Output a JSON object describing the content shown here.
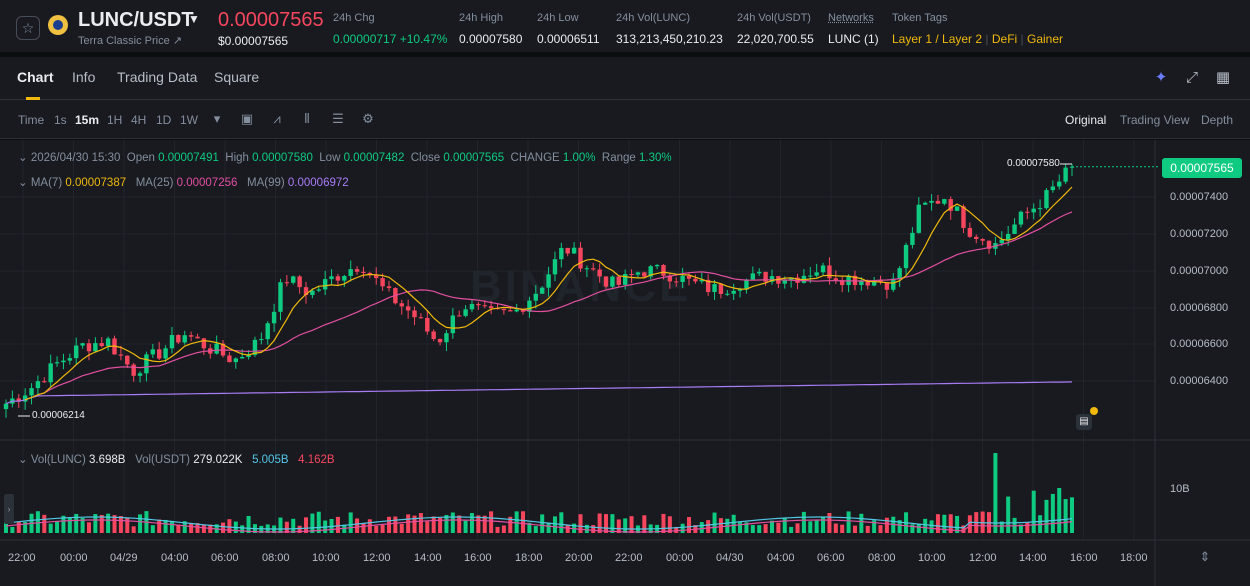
{
  "header": {
    "pair": "LUNC/USDT",
    "pair_subtitle": "Terra Classic Price ↗",
    "last_price": "0.00007565",
    "last_price_usd": "$0.00007565",
    "stats": [
      {
        "label": "24h Chg",
        "value": "0.00000717 +10.47%"
      },
      {
        "label": "24h High",
        "value": "0.00007580"
      },
      {
        "label": "24h Low",
        "value": "0.00006511"
      },
      {
        "label": "24h Vol(LUNC)",
        "value": "313,213,450,210.23"
      },
      {
        "label": "24h Vol(USDT)",
        "value": "22,020,700.55"
      },
      {
        "label": "Networks",
        "value": "LUNC (1)"
      }
    ],
    "token_tags_label": "Token Tags",
    "token_tags": [
      "Layer 1 / Layer 2",
      "DeFi",
      "Gainer"
    ]
  },
  "tabs": [
    "Chart",
    "Info",
    "Trading Data",
    "Square"
  ],
  "timeframes": [
    "Time",
    "1s",
    "15m",
    "1H",
    "4H",
    "1D",
    "1W"
  ],
  "active_timeframe": "15m",
  "views": [
    "Original",
    "Trading View",
    "Depth"
  ],
  "active_view": "Original",
  "ohlc": {
    "date": "2026/04/30 15:30",
    "open_label": "Open",
    "open": "0.00007491",
    "high_label": "High",
    "high": "0.00007580",
    "low_label": "Low",
    "low": "0.00007482",
    "close_label": "Close",
    "close": "0.00007565",
    "change_label": "CHANGE",
    "change": "1.00%",
    "range_label": "Range",
    "range": "1.30%"
  },
  "ma": {
    "ma7_label": "MA(7)",
    "ma7": "0.00007387",
    "ma25_label": "MA(25)",
    "ma25": "0.00007256",
    "ma99_label": "MA(99)",
    "ma99": "0.00006972"
  },
  "volume": {
    "lunc_label": "Vol(LUNC)",
    "lunc": "3.698B",
    "usdt_label": "Vol(USDT)",
    "usdt": "279.022K",
    "ma1": "5.005B",
    "ma2": "4.162B",
    "axis_label": "10B"
  },
  "current_price_badge": "0.00007565",
  "high_marker": "0.00007580",
  "low_marker": "0.00006214",
  "watermark": "BINANCE",
  "colors": {
    "up": "#0ecb81",
    "down": "#f6465d",
    "ma7": "#f0b90b",
    "ma25": "#e34fa0",
    "ma99": "#a97cf5",
    "accent": "#f0b90b"
  },
  "chart_data": {
    "type": "candlestick",
    "y_ticks": [
      "0.00007400",
      "0.00007200",
      "0.00007000",
      "0.00006800",
      "0.00006600",
      "0.00006400"
    ],
    "x_ticks": [
      "22:00",
      "00:00",
      "04/29",
      "04:00",
      "06:00",
      "08:00",
      "10:00",
      "12:00",
      "14:00",
      "16:00",
      "18:00",
      "20:00",
      "22:00",
      "00:00",
      "04/30",
      "04:00",
      "06:00",
      "08:00",
      "10:00",
      "12:00",
      "14:00",
      "16:00",
      "18:00"
    ],
    "close_series": [
      6.25e-05,
      6.34e-05,
      6.47e-05,
      6.57e-05,
      6.6e-05,
      6.43e-05,
      6.53e-05,
      6.64e-05,
      6.56e-05,
      6.49e-05,
      6.6e-05,
      6.95e-05,
      6.86e-05,
      6.96e-05,
      7.03e-05,
      6.86e-05,
      6.75e-05,
      6.59e-05,
      6.8e-05,
      6.74e-05,
      6.75e-05,
      6.89e-05,
      7.12e-05,
      7e-05,
      6.9e-05,
      6.99e-05,
      6.98e-05,
      6.92e-05,
      6.88e-05,
      6.93e-05,
      6.96e-05,
      6.95e-05,
      7e-05,
      6.95e-05,
      6.94e-05,
      6.92e-05,
      7.33e-05,
      7.4e-05,
      7.21e-05,
      7.13e-05,
      7.28e-05,
      7.4e-05,
      7.565e-05
    ],
    "ylim": [
      6.214e-05,
      7.58e-05
    ]
  }
}
